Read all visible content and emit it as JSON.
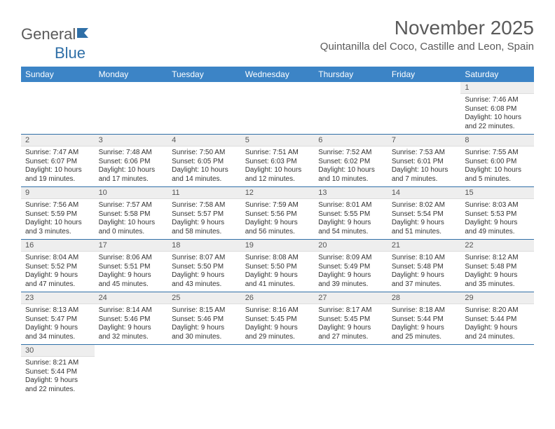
{
  "brand": {
    "part1": "General",
    "part2": "Blue"
  },
  "title": "November 2025",
  "location": "Quintanilla del Coco, Castille and Leon, Spain",
  "weekdays": [
    "Sunday",
    "Monday",
    "Tuesday",
    "Wednesday",
    "Thursday",
    "Friday",
    "Saturday"
  ],
  "colors": {
    "header_bg": "#3c84c6",
    "border": "#2f6fa7",
    "daynum_bg": "#eeeeee"
  },
  "rows": [
    [
      null,
      null,
      null,
      null,
      null,
      null,
      {
        "n": "1",
        "sr": "Sunrise: 7:46 AM",
        "ss": "Sunset: 6:08 PM",
        "d1": "Daylight: 10 hours",
        "d2": "and 22 minutes."
      }
    ],
    [
      {
        "n": "2",
        "sr": "Sunrise: 7:47 AM",
        "ss": "Sunset: 6:07 PM",
        "d1": "Daylight: 10 hours",
        "d2": "and 19 minutes."
      },
      {
        "n": "3",
        "sr": "Sunrise: 7:48 AM",
        "ss": "Sunset: 6:06 PM",
        "d1": "Daylight: 10 hours",
        "d2": "and 17 minutes."
      },
      {
        "n": "4",
        "sr": "Sunrise: 7:50 AM",
        "ss": "Sunset: 6:05 PM",
        "d1": "Daylight: 10 hours",
        "d2": "and 14 minutes."
      },
      {
        "n": "5",
        "sr": "Sunrise: 7:51 AM",
        "ss": "Sunset: 6:03 PM",
        "d1": "Daylight: 10 hours",
        "d2": "and 12 minutes."
      },
      {
        "n": "6",
        "sr": "Sunrise: 7:52 AM",
        "ss": "Sunset: 6:02 PM",
        "d1": "Daylight: 10 hours",
        "d2": "and 10 minutes."
      },
      {
        "n": "7",
        "sr": "Sunrise: 7:53 AM",
        "ss": "Sunset: 6:01 PM",
        "d1": "Daylight: 10 hours",
        "d2": "and 7 minutes."
      },
      {
        "n": "8",
        "sr": "Sunrise: 7:55 AM",
        "ss": "Sunset: 6:00 PM",
        "d1": "Daylight: 10 hours",
        "d2": "and 5 minutes."
      }
    ],
    [
      {
        "n": "9",
        "sr": "Sunrise: 7:56 AM",
        "ss": "Sunset: 5:59 PM",
        "d1": "Daylight: 10 hours",
        "d2": "and 3 minutes."
      },
      {
        "n": "10",
        "sr": "Sunrise: 7:57 AM",
        "ss": "Sunset: 5:58 PM",
        "d1": "Daylight: 10 hours",
        "d2": "and 0 minutes."
      },
      {
        "n": "11",
        "sr": "Sunrise: 7:58 AM",
        "ss": "Sunset: 5:57 PM",
        "d1": "Daylight: 9 hours",
        "d2": "and 58 minutes."
      },
      {
        "n": "12",
        "sr": "Sunrise: 7:59 AM",
        "ss": "Sunset: 5:56 PM",
        "d1": "Daylight: 9 hours",
        "d2": "and 56 minutes."
      },
      {
        "n": "13",
        "sr": "Sunrise: 8:01 AM",
        "ss": "Sunset: 5:55 PM",
        "d1": "Daylight: 9 hours",
        "d2": "and 54 minutes."
      },
      {
        "n": "14",
        "sr": "Sunrise: 8:02 AM",
        "ss": "Sunset: 5:54 PM",
        "d1": "Daylight: 9 hours",
        "d2": "and 51 minutes."
      },
      {
        "n": "15",
        "sr": "Sunrise: 8:03 AM",
        "ss": "Sunset: 5:53 PM",
        "d1": "Daylight: 9 hours",
        "d2": "and 49 minutes."
      }
    ],
    [
      {
        "n": "16",
        "sr": "Sunrise: 8:04 AM",
        "ss": "Sunset: 5:52 PM",
        "d1": "Daylight: 9 hours",
        "d2": "and 47 minutes."
      },
      {
        "n": "17",
        "sr": "Sunrise: 8:06 AM",
        "ss": "Sunset: 5:51 PM",
        "d1": "Daylight: 9 hours",
        "d2": "and 45 minutes."
      },
      {
        "n": "18",
        "sr": "Sunrise: 8:07 AM",
        "ss": "Sunset: 5:50 PM",
        "d1": "Daylight: 9 hours",
        "d2": "and 43 minutes."
      },
      {
        "n": "19",
        "sr": "Sunrise: 8:08 AM",
        "ss": "Sunset: 5:50 PM",
        "d1": "Daylight: 9 hours",
        "d2": "and 41 minutes."
      },
      {
        "n": "20",
        "sr": "Sunrise: 8:09 AM",
        "ss": "Sunset: 5:49 PM",
        "d1": "Daylight: 9 hours",
        "d2": "and 39 minutes."
      },
      {
        "n": "21",
        "sr": "Sunrise: 8:10 AM",
        "ss": "Sunset: 5:48 PM",
        "d1": "Daylight: 9 hours",
        "d2": "and 37 minutes."
      },
      {
        "n": "22",
        "sr": "Sunrise: 8:12 AM",
        "ss": "Sunset: 5:48 PM",
        "d1": "Daylight: 9 hours",
        "d2": "and 35 minutes."
      }
    ],
    [
      {
        "n": "23",
        "sr": "Sunrise: 8:13 AM",
        "ss": "Sunset: 5:47 PM",
        "d1": "Daylight: 9 hours",
        "d2": "and 34 minutes."
      },
      {
        "n": "24",
        "sr": "Sunrise: 8:14 AM",
        "ss": "Sunset: 5:46 PM",
        "d1": "Daylight: 9 hours",
        "d2": "and 32 minutes."
      },
      {
        "n": "25",
        "sr": "Sunrise: 8:15 AM",
        "ss": "Sunset: 5:46 PM",
        "d1": "Daylight: 9 hours",
        "d2": "and 30 minutes."
      },
      {
        "n": "26",
        "sr": "Sunrise: 8:16 AM",
        "ss": "Sunset: 5:45 PM",
        "d1": "Daylight: 9 hours",
        "d2": "and 29 minutes."
      },
      {
        "n": "27",
        "sr": "Sunrise: 8:17 AM",
        "ss": "Sunset: 5:45 PM",
        "d1": "Daylight: 9 hours",
        "d2": "and 27 minutes."
      },
      {
        "n": "28",
        "sr": "Sunrise: 8:18 AM",
        "ss": "Sunset: 5:44 PM",
        "d1": "Daylight: 9 hours",
        "d2": "and 25 minutes."
      },
      {
        "n": "29",
        "sr": "Sunrise: 8:20 AM",
        "ss": "Sunset: 5:44 PM",
        "d1": "Daylight: 9 hours",
        "d2": "and 24 minutes."
      }
    ],
    [
      {
        "n": "30",
        "sr": "Sunrise: 8:21 AM",
        "ss": "Sunset: 5:44 PM",
        "d1": "Daylight: 9 hours",
        "d2": "and 22 minutes."
      },
      null,
      null,
      null,
      null,
      null,
      null
    ]
  ]
}
